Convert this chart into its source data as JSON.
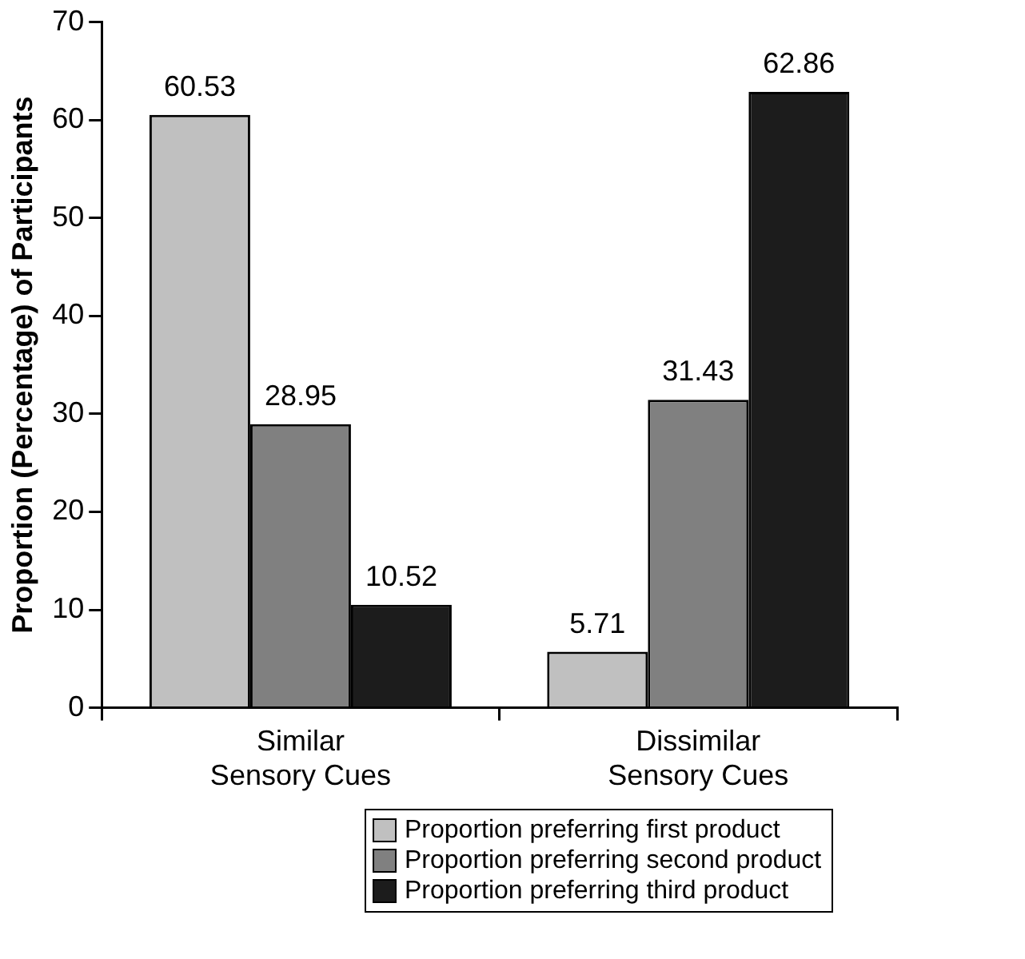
{
  "chart_data": {
    "type": "bar",
    "ylabel": "Proportion (Percentage) of Participants",
    "categories": [
      "Similar\nSensory Cues",
      "Dissimilar\nSensory Cues"
    ],
    "series": [
      {
        "name": "Proportion preferring first product",
        "color": "#c0c0c0",
        "values": [
          60.53,
          5.71
        ]
      },
      {
        "name": "Proportion preferring second product",
        "color": "#808080",
        "values": [
          28.95,
          31.43
        ]
      },
      {
        "name": "Proportion preferring third product",
        "color": "#1c1c1c",
        "values": [
          10.52,
          62.86
        ]
      }
    ],
    "ylim": [
      0,
      70
    ],
    "yticks": [
      0,
      10,
      20,
      30,
      40,
      50,
      60,
      70
    ],
    "grid": false,
    "legend": "bottom",
    "data_labels": true
  }
}
